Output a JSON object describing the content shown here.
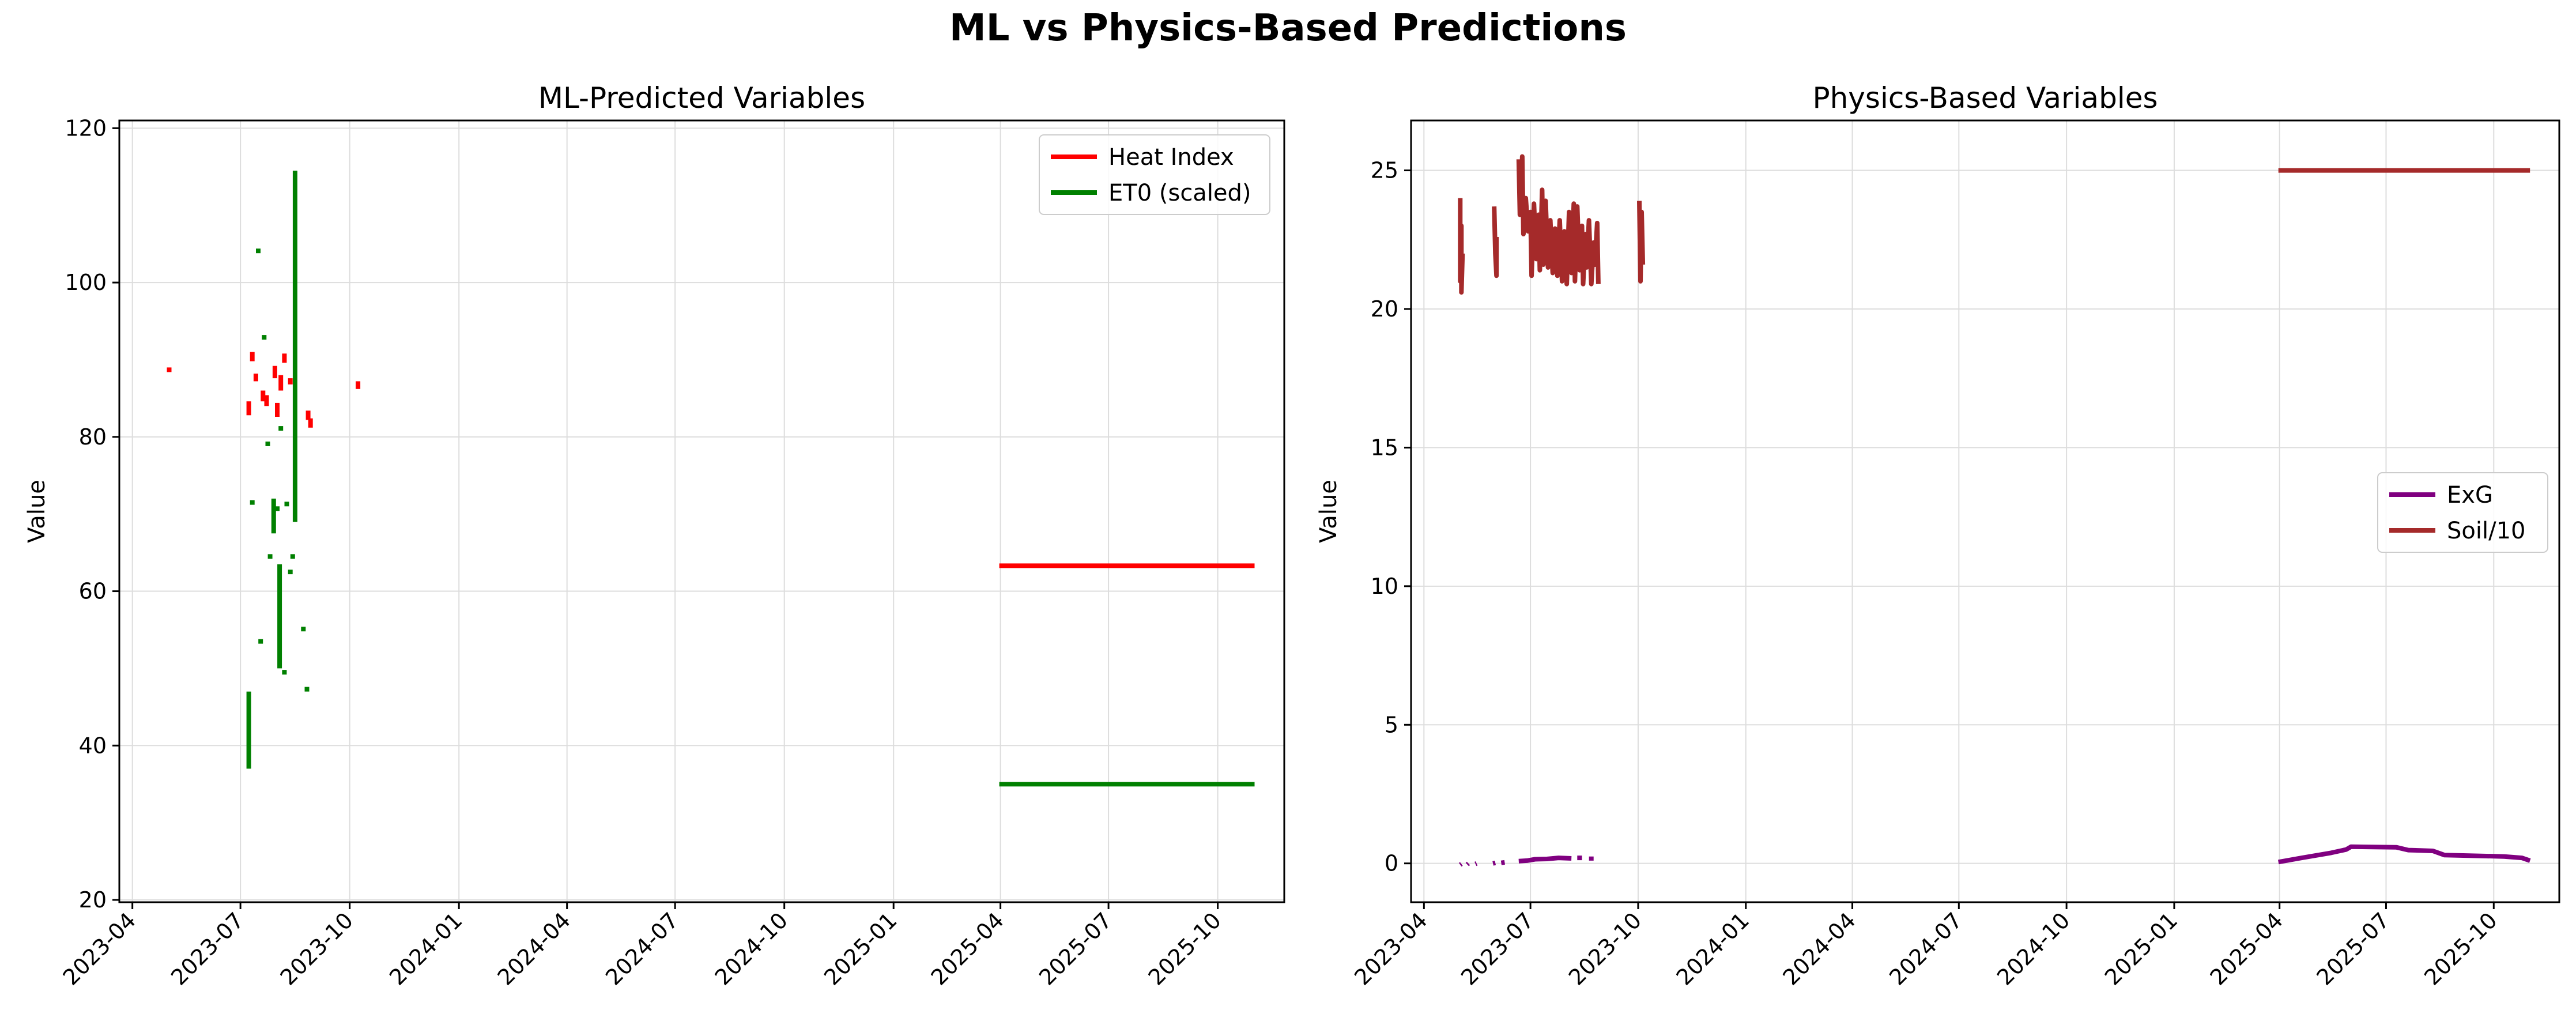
{
  "title": "ML vs Physics-Based Predictions",
  "chart_data": [
    {
      "type": "line",
      "title": "ML-Predicted Variables",
      "xlabel": "",
      "ylabel": "Value",
      "x_axis": "date",
      "xlim": [
        "2023-03-21",
        "2025-11-26"
      ],
      "ylim": [
        19.7,
        121
      ],
      "xticks": [
        "2023-04",
        "2023-07",
        "2023-10",
        "2024-01",
        "2024-04",
        "2024-07",
        "2024-10",
        "2025-01",
        "2025-04",
        "2025-07",
        "2025-10"
      ],
      "yticks": [
        20,
        40,
        60,
        80,
        100,
        120
      ],
      "grid": true,
      "legend": "top-right",
      "series": [
        {
          "name": "Heat Index",
          "color": "#ff0000",
          "segments": [
            [
              [
                "2023-05-02",
                88.4
              ],
              [
                "2023-05-02",
                89.0
              ]
            ],
            [
              [
                "2023-07-08",
                82.8
              ],
              [
                "2023-07-08",
                84.6
              ]
            ],
            [
              [
                "2023-07-11",
                89.8
              ],
              [
                "2023-07-11",
                91.0
              ]
            ],
            [
              [
                "2023-07-14",
                87.2
              ],
              [
                "2023-07-14",
                88.2
              ]
            ],
            [
              [
                "2023-07-20",
                84.6
              ],
              [
                "2023-07-20",
                86.0
              ]
            ],
            [
              [
                "2023-07-23",
                84.0
              ],
              [
                "2023-07-23",
                85.4
              ]
            ],
            [
              [
                "2023-07-30",
                87.6
              ],
              [
                "2023-07-30",
                89.2
              ]
            ],
            [
              [
                "2023-08-01",
                82.6
              ],
              [
                "2023-08-01",
                84.4
              ]
            ],
            [
              [
                "2023-08-04",
                86.0
              ],
              [
                "2023-08-04",
                88.0
              ]
            ],
            [
              [
                "2023-08-07",
                89.6
              ],
              [
                "2023-08-07",
                90.8
              ]
            ],
            [
              [
                "2023-08-12",
                86.8
              ],
              [
                "2023-08-12",
                87.6
              ]
            ],
            [
              [
                "2023-08-27",
                82.2
              ],
              [
                "2023-08-27",
                83.4
              ]
            ],
            [
              [
                "2023-08-29",
                81.2
              ],
              [
                "2023-08-29",
                82.4
              ]
            ],
            [
              [
                "2023-10-08",
                86.2
              ],
              [
                "2023-10-08",
                87.2
              ]
            ],
            [
              [
                "2025-03-31",
                63.3
              ],
              [
                "2025-11-01",
                63.3
              ]
            ]
          ]
        },
        {
          "name": "ET0 (scaled)",
          "color": "#008000",
          "segments": [
            [
              [
                "2023-07-08",
                37.0
              ],
              [
                "2023-07-08",
                47.0
              ]
            ],
            [
              [
                "2023-07-11",
                71.2
              ],
              [
                "2023-07-11",
                71.8
              ]
            ],
            [
              [
                "2023-07-16",
                103.8
              ],
              [
                "2023-07-16",
                104.4
              ]
            ],
            [
              [
                "2023-07-18",
                53.2
              ],
              [
                "2023-07-18",
                53.8
              ]
            ],
            [
              [
                "2023-07-21",
                92.6
              ],
              [
                "2023-07-21",
                93.2
              ]
            ],
            [
              [
                "2023-07-24",
                78.8
              ],
              [
                "2023-07-24",
                79.4
              ]
            ],
            [
              [
                "2023-07-26",
                64.2
              ],
              [
                "2023-07-26",
                64.8
              ]
            ],
            [
              [
                "2023-07-29",
                67.5
              ],
              [
                "2023-07-29",
                72.0
              ]
            ],
            [
              [
                "2023-08-01",
                70.4
              ],
              [
                "2023-08-01",
                71.0
              ]
            ],
            [
              [
                "2023-08-03",
                50.0
              ],
              [
                "2023-08-03",
                63.5
              ]
            ],
            [
              [
                "2023-08-04",
                80.8
              ],
              [
                "2023-08-04",
                81.4
              ]
            ],
            [
              [
                "2023-08-07",
                49.2
              ],
              [
                "2023-08-07",
                49.8
              ]
            ],
            [
              [
                "2023-08-09",
                71.0
              ],
              [
                "2023-08-09",
                71.6
              ]
            ],
            [
              [
                "2023-08-12",
                62.2
              ],
              [
                "2023-08-12",
                62.8
              ]
            ],
            [
              [
                "2023-08-14",
                64.2
              ],
              [
                "2023-08-14",
                64.8
              ]
            ],
            [
              [
                "2023-08-16",
                69.0
              ],
              [
                "2023-08-16",
                114.5
              ]
            ],
            [
              [
                "2023-08-23",
                54.8
              ],
              [
                "2023-08-23",
                55.4
              ]
            ],
            [
              [
                "2023-08-26",
                47.0
              ],
              [
                "2023-08-26",
                47.6
              ]
            ],
            [
              [
                "2025-03-31",
                35.0
              ],
              [
                "2025-11-01",
                35.0
              ]
            ]
          ]
        }
      ]
    },
    {
      "type": "line",
      "title": "Physics-Based Variables",
      "xlabel": "",
      "ylabel": "Value",
      "x_axis": "date",
      "xlim": [
        "2023-03-21",
        "2025-11-26"
      ],
      "ylim": [
        -1.4,
        26.8
      ],
      "xticks": [
        "2023-04",
        "2023-07",
        "2023-10",
        "2024-01",
        "2024-04",
        "2024-07",
        "2024-10",
        "2025-01",
        "2025-04",
        "2025-07",
        "2025-10"
      ],
      "yticks": [
        0,
        5,
        10,
        15,
        20,
        25
      ],
      "grid": true,
      "legend": "center-right",
      "series": [
        {
          "name": "ExG",
          "color": "#800080",
          "segments": [
            [
              [
                "2023-05-02",
                -0.05
              ],
              [
                "2023-05-03",
                -0.02
              ]
            ],
            [
              [
                "2023-05-08",
                -0.04
              ],
              [
                "2023-05-09",
                0.0
              ]
            ],
            [
              [
                "2023-05-15",
                -0.02
              ],
              [
                "2023-05-16",
                0.0
              ]
            ],
            [
              [
                "2023-05-30",
                0.0
              ],
              [
                "2023-06-01",
                0.02
              ]
            ],
            [
              [
                "2023-06-06",
                0.02
              ],
              [
                "2023-06-09",
                0.04
              ]
            ],
            [
              [
                "2023-06-21",
                0.08
              ],
              [
                "2023-06-28",
                0.1
              ],
              [
                "2023-07-05",
                0.15
              ],
              [
                "2023-07-15",
                0.16
              ],
              [
                "2023-07-25",
                0.2
              ],
              [
                "2023-08-05",
                0.18
              ]
            ],
            [
              [
                "2023-08-10",
                0.2
              ],
              [
                "2023-08-14",
                0.2
              ]
            ],
            [
              [
                "2023-08-22",
                0.1
              ],
              [
                "2023-08-22",
                0.25
              ]
            ],
            [
              [
                "2025-03-31",
                0.05
              ],
              [
                "2025-04-20",
                0.2
              ],
              [
                "2025-05-15",
                0.38
              ],
              [
                "2025-05-28",
                0.5
              ],
              [
                "2025-06-01",
                0.6
              ],
              [
                "2025-07-10",
                0.58
              ],
              [
                "2025-07-20",
                0.48
              ],
              [
                "2025-08-10",
                0.45
              ],
              [
                "2025-08-20",
                0.3
              ],
              [
                "2025-09-10",
                0.28
              ],
              [
                "2025-10-10",
                0.25
              ],
              [
                "2025-10-25",
                0.2
              ],
              [
                "2025-11-01",
                0.1
              ]
            ]
          ]
        },
        {
          "name": "Soil/10",
          "color": "#a52a2a",
          "segments": [
            [
              [
                "2023-05-02",
                24.0
              ],
              [
                "2023-05-02",
                21.0
              ],
              [
                "2023-05-03",
                23.0
              ],
              [
                "2023-05-03",
                20.6
              ],
              [
                "2023-05-04",
                22.0
              ]
            ],
            [
              [
                "2023-05-31",
                23.7
              ],
              [
                "2023-06-01",
                22.0
              ],
              [
                "2023-06-02",
                21.2
              ],
              [
                "2023-06-02",
                22.6
              ]
            ],
            [
              [
                "2023-06-21",
                25.4
              ],
              [
                "2023-06-22",
                23.4
              ],
              [
                "2023-06-24",
                25.5
              ],
              [
                "2023-06-25",
                22.7
              ],
              [
                "2023-06-27",
                24.0
              ],
              [
                "2023-06-29",
                22.8
              ],
              [
                "2023-07-01",
                23.5
              ],
              [
                "2023-07-02",
                21.2
              ],
              [
                "2023-07-04",
                23.8
              ],
              [
                "2023-07-06",
                21.8
              ],
              [
                "2023-07-08",
                23.4
              ],
              [
                "2023-07-09",
                21.4
              ],
              [
                "2023-07-11",
                24.3
              ],
              [
                "2023-07-12",
                21.6
              ],
              [
                "2023-07-14",
                23.9
              ],
              [
                "2023-07-16",
                21.5
              ],
              [
                "2023-07-18",
                23.2
              ],
              [
                "2023-07-20",
                21.3
              ],
              [
                "2023-07-22",
                22.9
              ],
              [
                "2023-07-24",
                21.2
              ],
              [
                "2023-07-26",
                23.2
              ],
              [
                "2023-07-28",
                21.0
              ],
              [
                "2023-07-30",
                22.8
              ],
              [
                "2023-08-01",
                20.9
              ],
              [
                "2023-08-03",
                23.5
              ],
              [
                "2023-08-05",
                21.3
              ],
              [
                "2023-08-07",
                23.8
              ],
              [
                "2023-08-08",
                21.0
              ],
              [
                "2023-08-10",
                23.7
              ],
              [
                "2023-08-12",
                21.4
              ],
              [
                "2023-08-14",
                23.0
              ],
              [
                "2023-08-15",
                20.9
              ],
              [
                "2023-08-17",
                22.7
              ],
              [
                "2023-08-18",
                21.5
              ],
              [
                "2023-08-20",
                23.2
              ],
              [
                "2023-08-22",
                20.9
              ],
              [
                "2023-08-24",
                22.4
              ],
              [
                "2023-08-25",
                21.6
              ],
              [
                "2023-08-27",
                23.1
              ],
              [
                "2023-08-28",
                20.9
              ]
            ],
            [
              [
                "2023-10-02",
                23.9
              ],
              [
                "2023-10-03",
                21.0
              ],
              [
                "2023-10-04",
                23.5
              ],
              [
                "2023-10-05",
                21.6
              ]
            ],
            [
              [
                "2025-03-31",
                25.0
              ],
              [
                "2025-11-01",
                25.0
              ]
            ]
          ]
        }
      ]
    }
  ]
}
